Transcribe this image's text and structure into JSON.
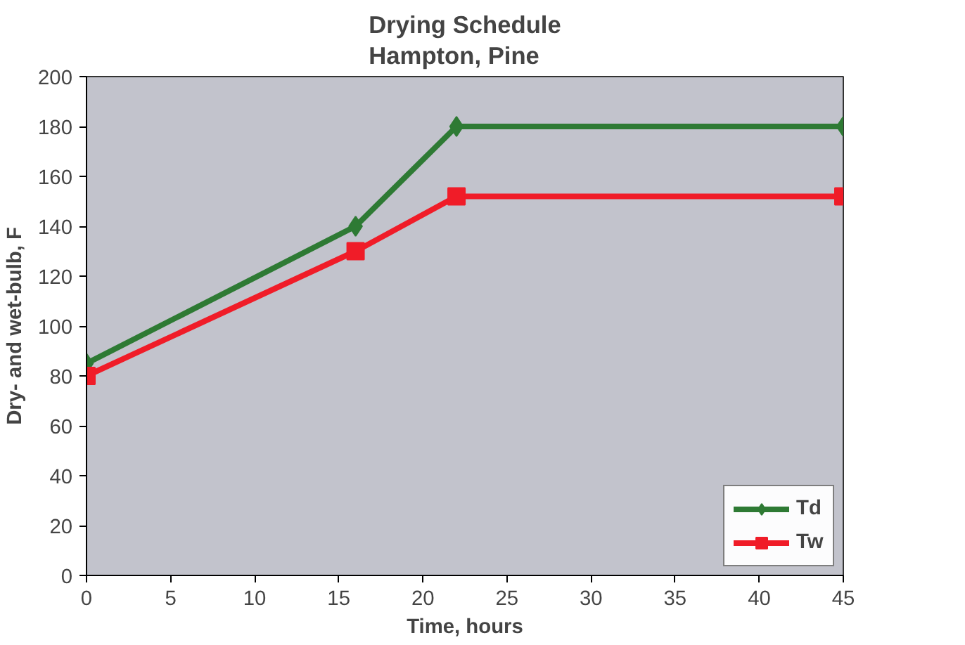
{
  "chart_data": {
    "type": "line",
    "title": "Drying Schedule\nHampton, Pine",
    "xlabel": "Time, hours",
    "ylabel": "Dry- and wet-bulb, F",
    "x": [
      0,
      16,
      22,
      45
    ],
    "series": [
      {
        "name": "Td",
        "color": "#2e7a34",
        "values": [
          85,
          140,
          180,
          180
        ],
        "marker": "diamond"
      },
      {
        "name": "Tw",
        "color": "#f01c28",
        "values": [
          80,
          130,
          152,
          152
        ],
        "marker": "square"
      }
    ],
    "xlim": [
      0,
      45
    ],
    "xticks": [
      0,
      5,
      10,
      15,
      20,
      25,
      30,
      35,
      40,
      45
    ],
    "ylim": [
      0,
      200
    ],
    "yticks": [
      0,
      20,
      40,
      60,
      80,
      100,
      120,
      140,
      160,
      180,
      200
    ],
    "grid": false,
    "legend": "bottom right",
    "line_style": "solid"
  }
}
